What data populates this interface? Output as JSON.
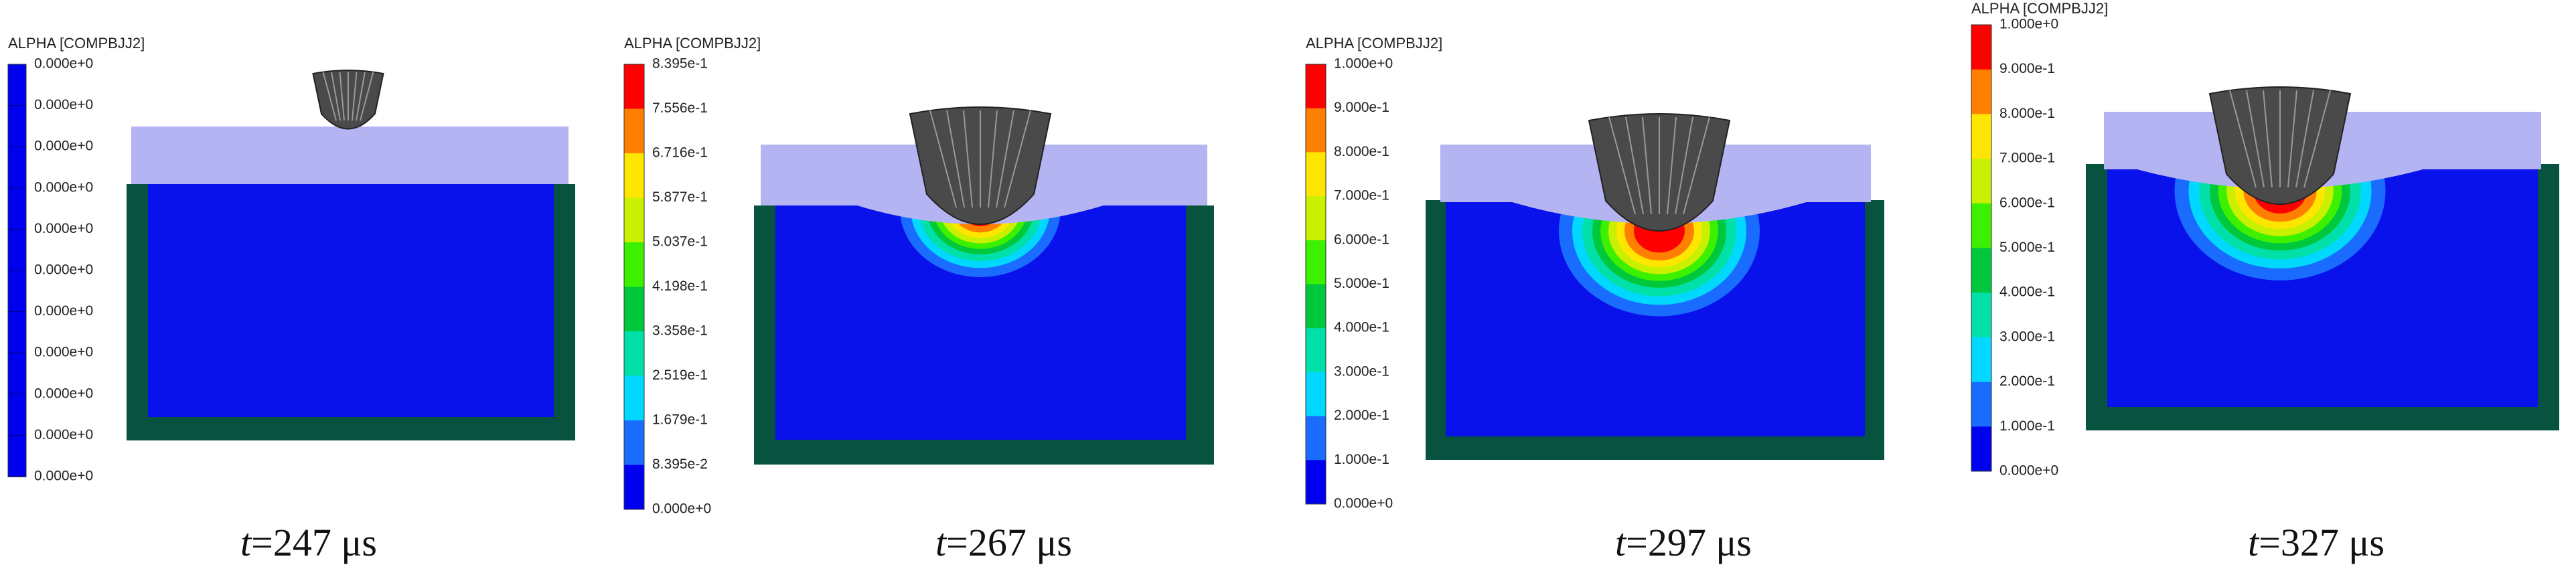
{
  "panels": [
    {
      "legend_title": "ALPHA [COMPBJJ2]",
      "legend_labels": [
        "0.000e+0",
        "0.000e+0",
        "0.000e+0",
        "0.000e+0",
        "0.000e+0",
        "0.000e+0",
        "0.000e+0",
        "0.000e+0",
        "0.000e+0",
        "0.000e+0",
        "0.000e+0"
      ],
      "caption": {
        "variable": "t",
        "text": "=247 μs"
      }
    },
    {
      "legend_title": "ALPHA [COMPBJJ2]",
      "legend_labels": [
        "8.395e-1",
        "7.556e-1",
        "6.716e-1",
        "5.877e-1",
        "5.037e-1",
        "4.198e-1",
        "3.358e-1",
        "2.519e-1",
        "1.679e-1",
        "8.395e-2",
        "0.000e+0"
      ],
      "caption": {
        "variable": "t",
        "text": "=267 μs"
      }
    },
    {
      "legend_title": "ALPHA [COMPBJJ2]",
      "legend_labels": [
        "1.000e+0",
        "9.000e-1",
        "8.000e-1",
        "7.000e-1",
        "6.000e-1",
        "5.000e-1",
        "4.000e-1",
        "3.000e-1",
        "2.000e-1",
        "1.000e-1",
        "0.000e+0"
      ],
      "caption": {
        "variable": "t",
        "text": "=297 μs"
      }
    },
    {
      "legend_title": "ALPHA [COMPBJJ2]",
      "legend_labels": [
        "1.000e+0",
        "9.000e-1",
        "8.000e-1",
        "7.000e-1",
        "6.000e-1",
        "5.000e-1",
        "4.000e-1",
        "3.000e-1",
        "2.000e-1",
        "1.000e-1",
        "0.000e+0"
      ],
      "caption": {
        "variable": "t",
        "text": "=327 μs"
      }
    }
  ]
}
